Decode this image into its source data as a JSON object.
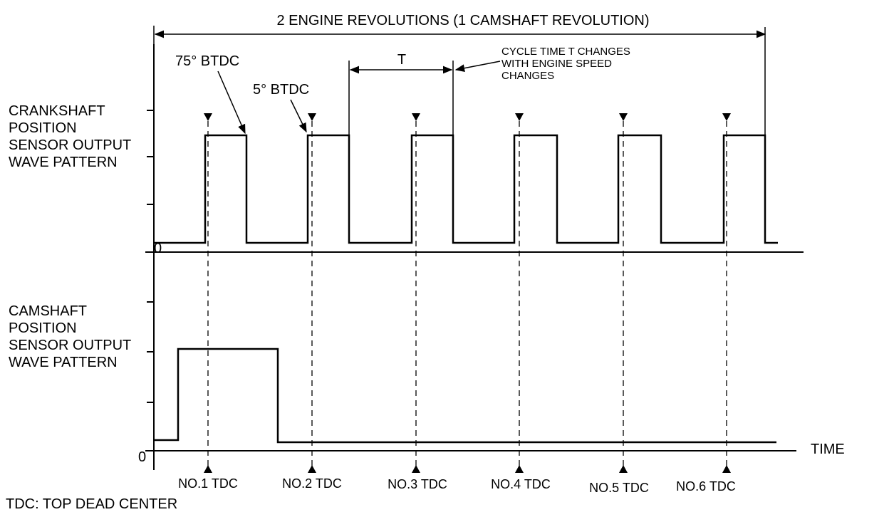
{
  "title": "2 ENGINE REVOLUTIONS (1 CAMSHAFT REVOLUTION)",
  "crank_label": [
    "CRANKSHAFT",
    "POSITION",
    "SENSOR OUTPUT",
    "WAVE PATTERN"
  ],
  "cam_label": [
    "CAMSHAFT",
    "POSITION",
    "SENSOR OUTPUT",
    "WAVE PATTERN"
  ],
  "annotations": {
    "btdc_75": "75° BTDC",
    "btdc_5": "5° BTDC",
    "cycle_t": "T",
    "cycle_note": [
      "CYCLE TIME T CHANGES",
      "WITH ENGINE SPEED",
      "CHANGES"
    ]
  },
  "zero_crank": "0",
  "zero_cam": "0",
  "time_label": "TIME",
  "tdc_labels": [
    "NO.1 TDC",
    "NO.2 TDC",
    "NO.3 TDC",
    "NO.4 TDC",
    "NO.5 TDC",
    "NO.6 TDC"
  ],
  "footnote": "TDC: TOP DEAD CENTER"
}
